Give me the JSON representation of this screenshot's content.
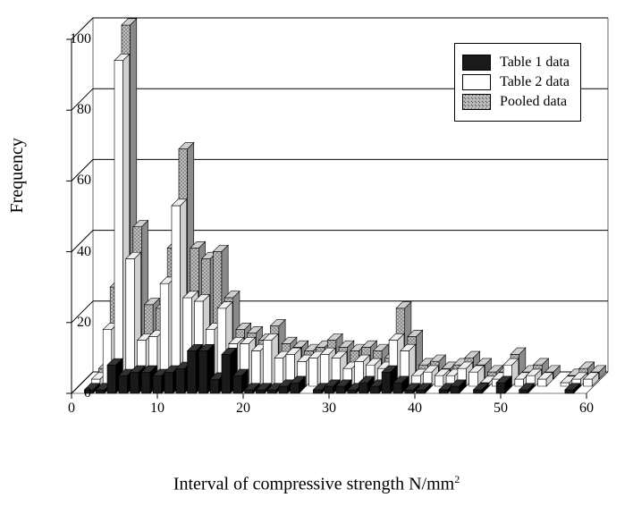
{
  "chart": {
    "type": "bar-3d-grouped",
    "ylabel": "Frequency",
    "xlabel_prefix": "Interval of compressive strength  N/mm",
    "xlabel_sup": "2",
    "ylim": [
      0,
      100
    ],
    "ytick_step": 20,
    "yticks": [
      0,
      20,
      40,
      60,
      80,
      100
    ],
    "xlim": [
      0,
      60
    ],
    "xticks": [
      0,
      10,
      20,
      30,
      40,
      50,
      60
    ],
    "grid_color": "#000000",
    "background_color": "#ffffff",
    "axis_color": "#000000",
    "label_fontsize": 20,
    "tick_fontsize": 16,
    "depth_dx": 24,
    "depth_dy": 24,
    "bar_cluster_width": 0.75,
    "series": [
      {
        "key": "table1",
        "label": "Table 1 data",
        "fill": "#1a1a1a",
        "pattern": "solid",
        "values": [
          0,
          1,
          1,
          8,
          5,
          6,
          6,
          5,
          6,
          7,
          12,
          12,
          4,
          11,
          5,
          1,
          1,
          1,
          2,
          3,
          0,
          1,
          2,
          2,
          1,
          3,
          2,
          6,
          3,
          1,
          1,
          0,
          1,
          2,
          0,
          1,
          0,
          3,
          0,
          1,
          0,
          0,
          0,
          1,
          0
        ]
      },
      {
        "key": "table2",
        "label": "Table 2 data",
        "fill": "#ffffff",
        "pattern": "solid",
        "values": [
          0,
          2,
          16,
          92,
          36,
          13,
          14,
          29,
          51,
          25,
          24,
          16,
          22,
          12,
          12,
          10,
          13,
          8,
          9,
          7,
          8,
          9,
          8,
          5,
          7,
          6,
          5,
          13,
          10,
          3,
          4,
          3,
          3,
          5,
          4,
          1,
          2,
          6,
          2,
          3,
          2,
          0,
          1,
          2,
          2
        ]
      },
      {
        "key": "pooled",
        "label": "Pooled data",
        "fill": "#b8b8b8",
        "pattern": "dots",
        "values": [
          0,
          3,
          26,
          100,
          43,
          21,
          20,
          37,
          65,
          37,
          34,
          36,
          23,
          14,
          13,
          11,
          15,
          10,
          9,
          8,
          9,
          11,
          9,
          8,
          9,
          8,
          6,
          20,
          12,
          4,
          5,
          3,
          4,
          6,
          4,
          2,
          2,
          7,
          2,
          4,
          2,
          0,
          1,
          3,
          2
        ]
      }
    ],
    "n_categories": 45,
    "x_start": 0,
    "x_step": 1.333,
    "legend": {
      "position": "top-right",
      "border_color": "#000000",
      "background": "#ffffff",
      "fontsize": 16
    }
  }
}
